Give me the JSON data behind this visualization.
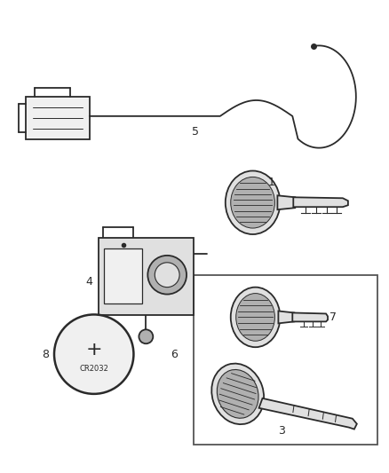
{
  "background_color": "#ffffff",
  "fig_width": 4.38,
  "fig_height": 5.33,
  "dpi": 100,
  "line_color": "#2a2a2a",
  "label_fontsize": 9,
  "gray_fill": "#e0e0e0",
  "dark_fill": "#b0b0b0",
  "light_fill": "#f0f0f0"
}
